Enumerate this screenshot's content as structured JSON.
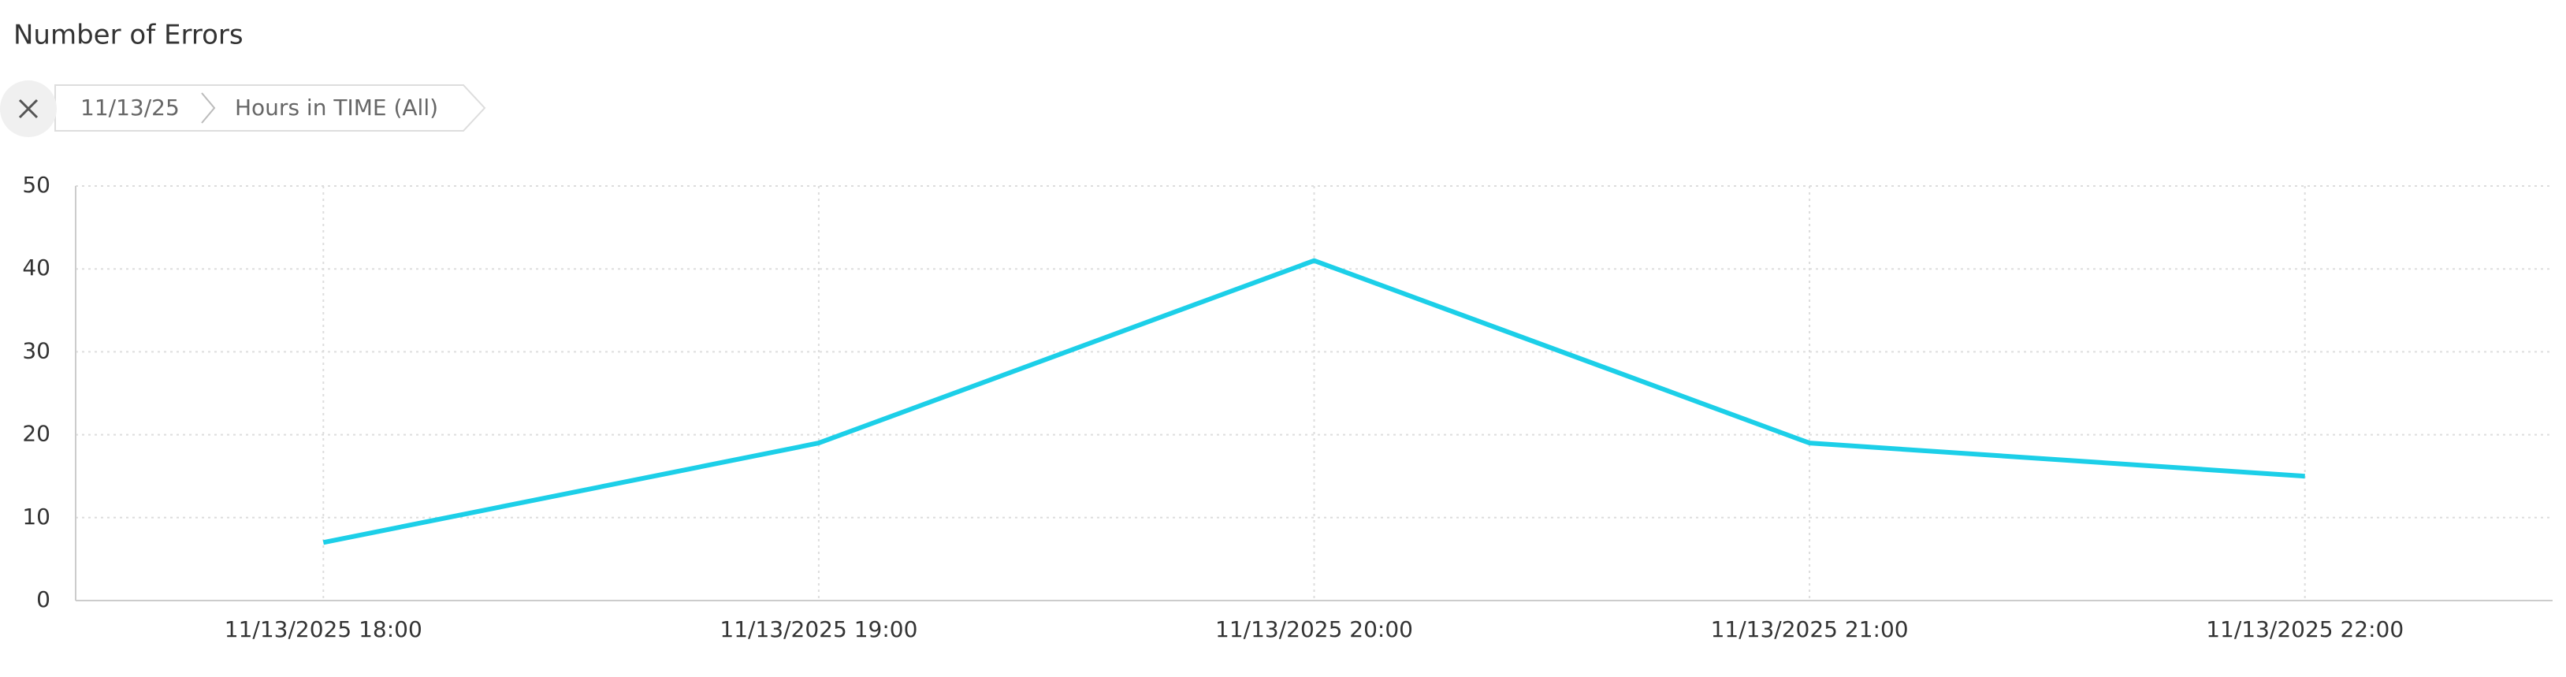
{
  "breadcrumb": [
    "11/13/25",
    "Hours in TIME (All)"
  ],
  "chart_data": {
    "type": "line",
    "title": "Number of Errors",
    "categories": [
      "11/13/2025 18:00",
      "11/13/2025 19:00",
      "11/13/2025 20:00",
      "11/13/2025 21:00",
      "11/13/2025 22:00"
    ],
    "series": [
      {
        "name": "Number of Errors",
        "color": "#1ccfe8",
        "values": [
          7,
          19,
          41,
          19,
          15
        ]
      }
    ],
    "ylim": [
      0,
      50
    ],
    "yticks": [
      0,
      10,
      20,
      30,
      40,
      50
    ],
    "grid": true
  }
}
